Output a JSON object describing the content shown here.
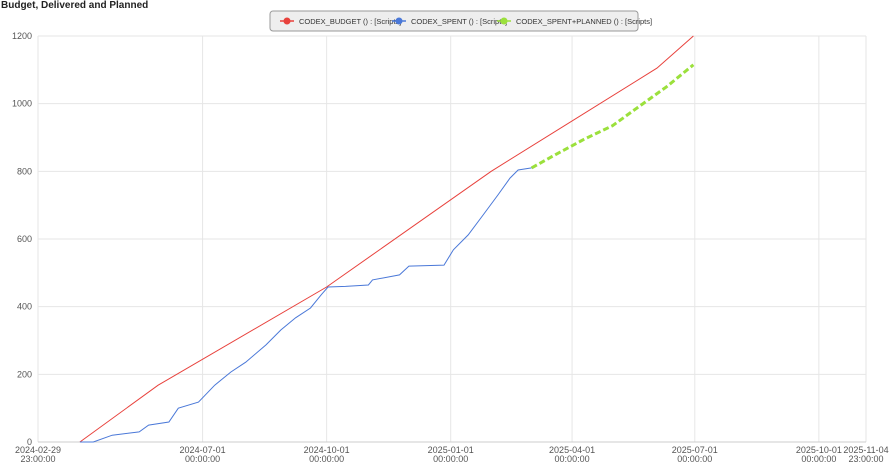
{
  "chart_data": {
    "type": "line",
    "title": "Budget, Delivered and Planned",
    "legend": "top",
    "grid": true,
    "xlim": [
      "2024-02-29 23:00:00",
      "2025-11-04 23:00:00"
    ],
    "xticks": [
      "2024-02-29 23:00:00",
      "2024-07-01 00:00:00",
      "2024-10-01 00:00:00",
      "2025-01-01 00:00:00",
      "2025-04-01 00:00:00",
      "2025-07-01 00:00:00",
      "2025-10-01 00:00:00",
      "2025-11-04 23:00:00"
    ],
    "ylim": [
      0,
      1200
    ],
    "yticks": [
      0,
      200,
      400,
      600,
      800,
      1000,
      1200
    ],
    "series": [
      {
        "name": "CODEX_BUDGET () : [Scripts]",
        "color": "#e8413c",
        "dash": false,
        "x": [
          "2024-04-01",
          "2024-05-29",
          "2024-10-01",
          "2025-01-31",
          "2025-06-03",
          "2025-06-30"
        ],
        "values": [
          0,
          168,
          458,
          800,
          1105,
          1200
        ]
      },
      {
        "name": "CODEX_SPENT () : [Scripts]",
        "color": "#4a78d8",
        "dash": false,
        "x": [
          "2024-04-01",
          "2024-04-11",
          "2024-04-25",
          "2024-05-15",
          "2024-05-22",
          "2024-06-06",
          "2024-06-13",
          "2024-06-28",
          "2024-07-10",
          "2024-07-22",
          "2024-08-02",
          "2024-08-17",
          "2024-08-28",
          "2024-09-08",
          "2024-09-19",
          "2024-09-27",
          "2024-10-02",
          "2024-10-15",
          "2024-11-01",
          "2024-11-04",
          "2024-11-24",
          "2024-12-01",
          "2024-12-27",
          "2025-01-03",
          "2025-01-14",
          "2025-01-25",
          "2025-02-05",
          "2025-02-14",
          "2025-02-20",
          "2025-03-02"
        ],
        "values": [
          0,
          0,
          20,
          30,
          50,
          59,
          100,
          118,
          168,
          207,
          236,
          287,
          331,
          367,
          396,
          435,
          458,
          460,
          464,
          479,
          494,
          520,
          523,
          568,
          612,
          671,
          730,
          780,
          804,
          810
        ]
      },
      {
        "name": "CODEX_SPENT+PLANNED () : [Scripts]",
        "color": "#9be03c",
        "dash": true,
        "x": [
          "2025-03-02",
          "2025-03-20",
          "2025-04-10",
          "2025-05-01",
          "2025-05-20",
          "2025-06-10",
          "2025-06-30"
        ],
        "values": [
          810,
          850,
          895,
          935,
          990,
          1050,
          1115
        ]
      }
    ]
  }
}
